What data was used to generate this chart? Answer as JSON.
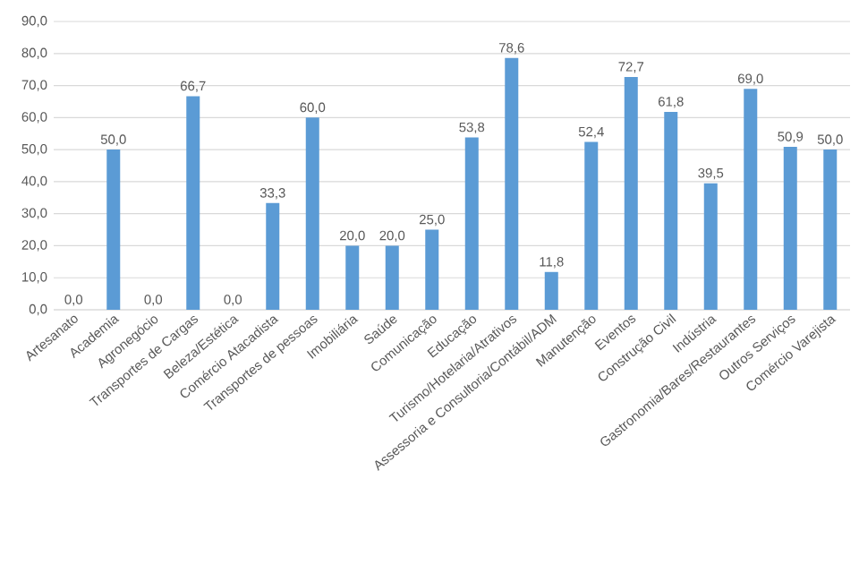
{
  "chart_data": {
    "type": "bar",
    "categories": [
      "Artesanato",
      "Academia",
      "Agronegócio",
      "Transportes de Cargas",
      "Beleza/Estética",
      "Comércio Atacadista",
      "Transportes de pessoas",
      "Imobiliária",
      "Saúde",
      "Comunicação",
      "Educação",
      "Turismo/Hotelaria/Atrativos",
      "Assessoria e Consultoria/Contábil/ADM",
      "Manutenção",
      "Eventos",
      "Construção Civil",
      "Indústria",
      "Gastronomia/Bares/Restaurantes",
      "Outros Serviços",
      "Comércio Varejista"
    ],
    "values": [
      0,
      50,
      0,
      66.7,
      0,
      33.3,
      60,
      20,
      20,
      25,
      53.8,
      78.6,
      11.8,
      52.4,
      72.7,
      61.8,
      39.5,
      69.0,
      50.9,
      50.0
    ],
    "value_labels": [
      "0,0",
      "50,0",
      "0,0",
      "66,7",
      "0,0",
      "33,3",
      "60,0",
      "20,0",
      "20,0",
      "25,0",
      "53,8",
      "78,6",
      "11,8",
      "52,4",
      "72,7",
      "61,8",
      "39,5",
      "69,0",
      "50,9",
      "50,0"
    ],
    "color": "#5b9bd5",
    "ylim": [
      0,
      90
    ],
    "yticks": [
      {
        "value": 0,
        "label": "0,0"
      },
      {
        "value": 10,
        "label": "10,0"
      },
      {
        "value": 20,
        "label": "20,0"
      },
      {
        "value": 30,
        "label": "30,0"
      },
      {
        "value": 40,
        "label": "40,0"
      },
      {
        "value": 50,
        "label": "50,0"
      },
      {
        "value": 60,
        "label": "60,0"
      },
      {
        "value": 70,
        "label": "70,0"
      },
      {
        "value": 80,
        "label": "80,0"
      },
      {
        "value": 90,
        "label": "90,0"
      }
    ],
    "grid": "y"
  }
}
